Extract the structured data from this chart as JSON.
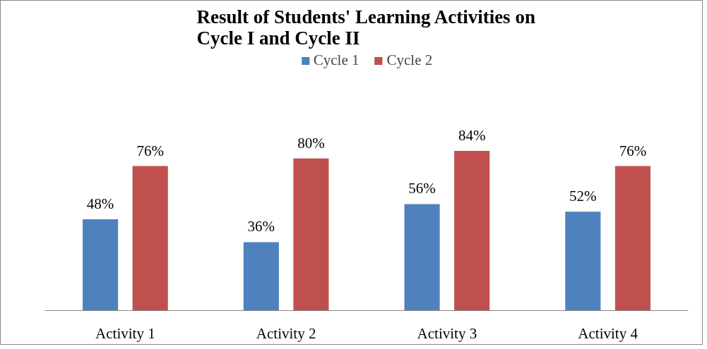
{
  "chart_data": {
    "type": "bar",
    "title": "Result of Students' Learning Activities on\nCycle I and Cycle II",
    "categories": [
      "Activity 1",
      "Activity 2",
      "Activity 3",
      "Activity 4"
    ],
    "series": [
      {
        "name": "Cycle 1",
        "color": "#4f81bd",
        "values": [
          48,
          36,
          56,
          52
        ],
        "value_labels": [
          "48%",
          "36%",
          "56%",
          "52%"
        ]
      },
      {
        "name": "Cycle 2",
        "color": "#c0504d",
        "values": [
          76,
          80,
          84,
          76
        ],
        "value_labels": [
          "76%",
          "80%",
          "84%",
          "76%"
        ]
      }
    ],
    "legend": "top",
    "grid": false
  }
}
